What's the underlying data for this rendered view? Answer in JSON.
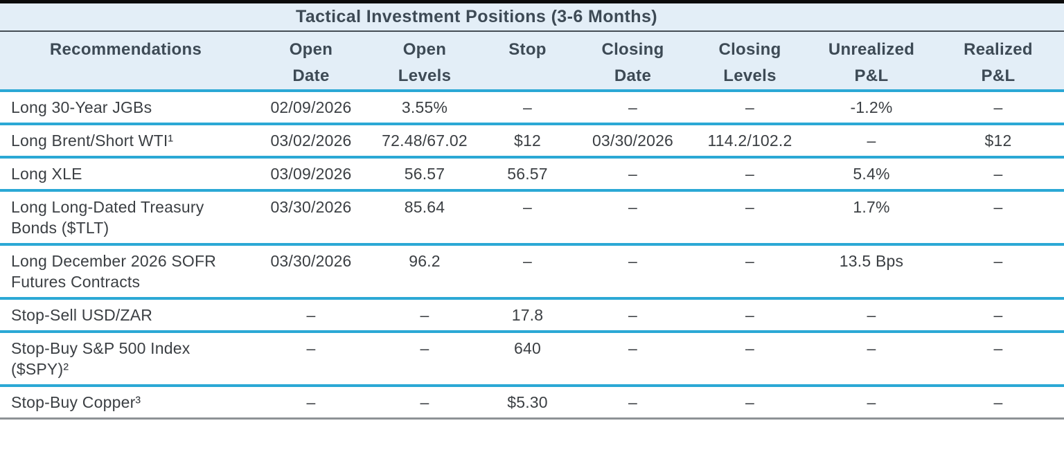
{
  "title": "Tactical Investment Positions (3-6 Months)",
  "colors": {
    "top_bar": "#0b0b0b",
    "band_blue": "#e3eef7",
    "title_rule": "#454d55",
    "accent_cyan": "#2ba8d5",
    "bottom_rule": "#8d9296",
    "header_text": "#3d4a55",
    "body_text": "#3b3f43"
  },
  "table": {
    "columns": [
      {
        "id": "recommendations",
        "lines": [
          "Recommendations"
        ]
      },
      {
        "id": "open-date",
        "lines": [
          "Open",
          "Date"
        ]
      },
      {
        "id": "open-levels",
        "lines": [
          "Open",
          "Levels"
        ]
      },
      {
        "id": "stop",
        "lines": [
          "Stop"
        ]
      },
      {
        "id": "closing-date",
        "lines": [
          "Closing",
          "Date"
        ]
      },
      {
        "id": "closing-levels",
        "lines": [
          "Closing",
          "Levels"
        ]
      },
      {
        "id": "unrealized-pnl",
        "lines": [
          "Unrealized",
          "P&L"
        ]
      },
      {
        "id": "realized-pnl",
        "lines": [
          "Realized",
          "P&L"
        ]
      }
    ],
    "rows": [
      {
        "cells": [
          "Long 30-Year JGBs",
          "02/09/2026",
          "3.55%",
          "–",
          "–",
          "–",
          "-1.2%",
          "–"
        ]
      },
      {
        "cells": [
          "Long Brent/Short WTI¹",
          "03/02/2026",
          "72.48/67.02",
          "$12",
          "03/30/2026",
          "114.2/102.2",
          "–",
          "$12"
        ]
      },
      {
        "cells": [
          "Long XLE",
          "03/09/2026",
          "56.57",
          "56.57",
          "–",
          "–",
          "5.4%",
          "–"
        ]
      },
      {
        "cells": [
          "Long Long-Dated Treasury Bonds ($TLT)",
          "03/30/2026",
          "85.64",
          "–",
          "–",
          "–",
          "1.7%",
          "–"
        ]
      },
      {
        "cells": [
          "Long December 2026 SOFR Futures Contracts",
          "03/30/2026",
          "96.2",
          "–",
          "–",
          "–",
          "13.5 Bps",
          "–"
        ]
      },
      {
        "cells": [
          "Stop-Sell USD/ZAR",
          "–",
          "–",
          "17.8",
          "–",
          "–",
          "–",
          "–"
        ]
      },
      {
        "cells": [
          "Stop-Buy S&P 500 Index ($SPY)²",
          "–",
          "–",
          "640",
          "–",
          "–",
          "–",
          "–"
        ]
      },
      {
        "cells": [
          "Stop-Buy Copper³",
          "–",
          "–",
          "$5.30",
          "–",
          "–",
          "–",
          "–"
        ]
      }
    ]
  }
}
